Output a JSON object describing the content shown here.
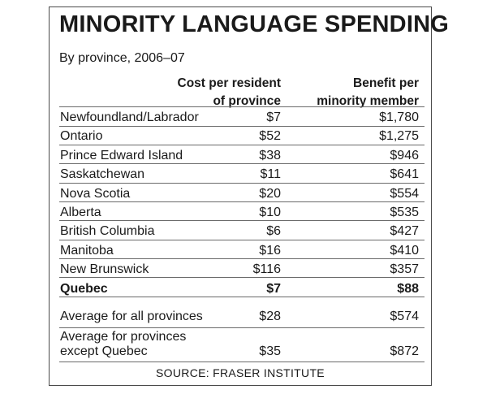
{
  "chart_data": {
    "type": "table",
    "title": "MINORITY LANGUAGE SPENDING",
    "subtitle": "By province, 2006–07",
    "columns": [
      "Cost per resident of province",
      "Benefit per minority member"
    ],
    "column_header_lines": [
      [
        "Cost per resident",
        "of province"
      ],
      [
        "Benefit per",
        "minority member"
      ]
    ],
    "rows": [
      {
        "province": "Newfoundland/Labrador",
        "cost": "$7",
        "benefit": "$1,780"
      },
      {
        "province": "Ontario",
        "cost": "$52",
        "benefit": "$1,275"
      },
      {
        "province": "Prince Edward Island",
        "cost": "$38",
        "benefit": "$946"
      },
      {
        "province": "Saskatchewan",
        "cost": "$11",
        "benefit": "$641"
      },
      {
        "province": "Nova Scotia",
        "cost": "$20",
        "benefit": "$554"
      },
      {
        "province": "Alberta",
        "cost": "$10",
        "benefit": "$535"
      },
      {
        "province": "British Columbia",
        "cost": "$6",
        "benefit": "$427"
      },
      {
        "province": "Manitoba",
        "cost": "$16",
        "benefit": "$410"
      },
      {
        "province": "New Brunswick",
        "cost": "$116",
        "benefit": "$357"
      },
      {
        "province": "Quebec",
        "cost": "$7",
        "benefit": "$88"
      }
    ],
    "averages": [
      {
        "label": "Average for all provinces",
        "cost": "$28",
        "benefit": "$574"
      },
      {
        "label_lines": [
          "Average for provinces",
          "except Quebec"
        ],
        "cost": "$35",
        "benefit": "$872"
      }
    ],
    "source": "SOURCE: FRASER INSTITUTE"
  }
}
